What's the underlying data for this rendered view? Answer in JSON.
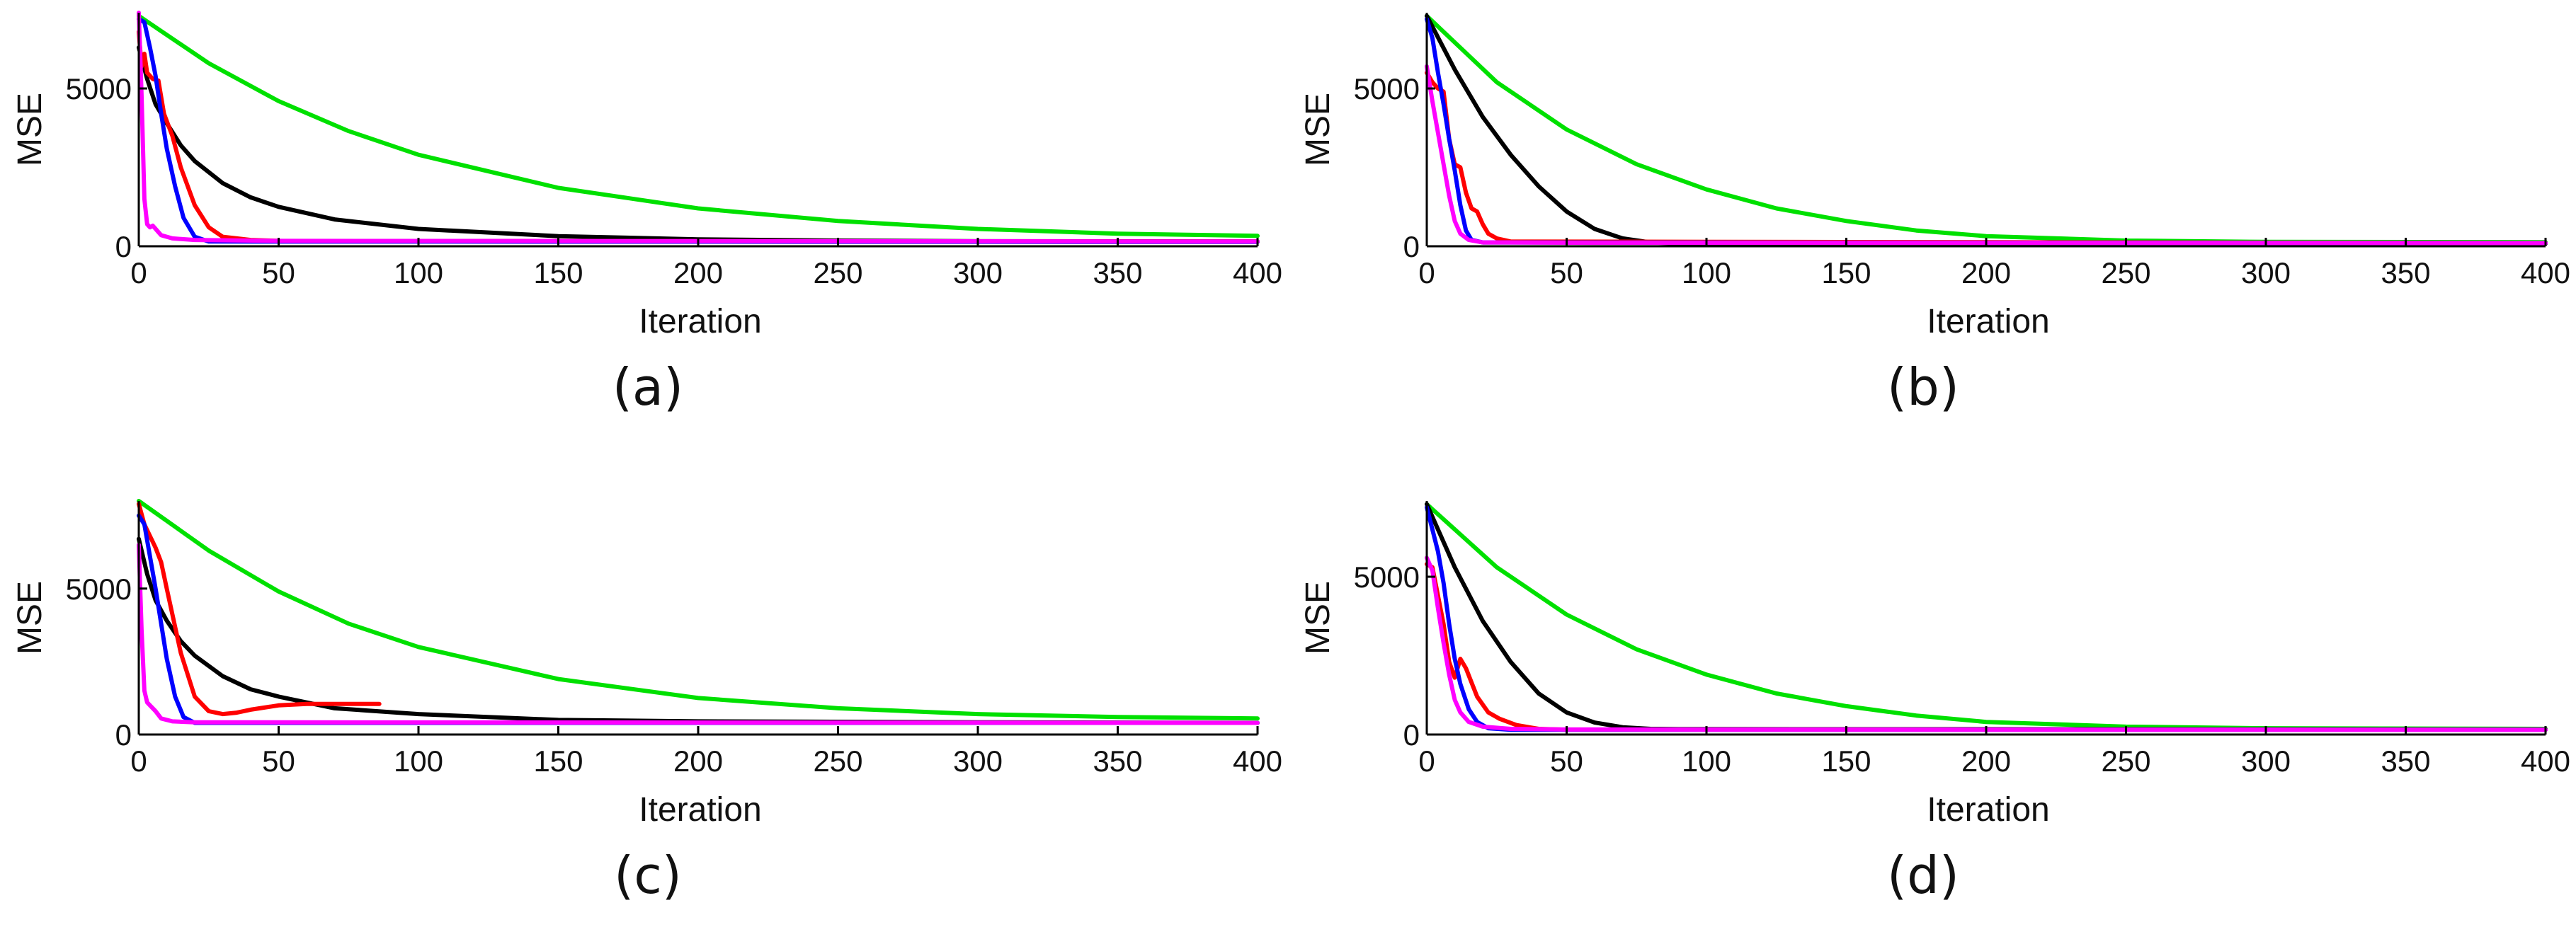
{
  "chart_data": [
    {
      "type": "line",
      "caption": "(a)",
      "xlabel": "Iteration",
      "ylabel": "MSE",
      "xlim": [
        0,
        400
      ],
      "ylim": [
        0,
        7400
      ],
      "xticks": [
        0,
        50,
        100,
        150,
        200,
        250,
        300,
        350,
        400
      ],
      "yticks": [
        0,
        5000
      ],
      "grid": false,
      "series": [
        {
          "color": "#00e000",
          "x": [
            0,
            25,
            50,
            75,
            100,
            150,
            200,
            250,
            300,
            350,
            400
          ],
          "y": [
            7300,
            5800,
            4600,
            3650,
            2900,
            1850,
            1200,
            800,
            550,
            400,
            330
          ]
        },
        {
          "color": "#000000",
          "x": [
            0,
            3,
            6,
            10,
            15,
            20,
            30,
            40,
            50,
            70,
            100,
            150,
            200,
            250,
            300,
            400
          ],
          "y": [
            6300,
            5300,
            4500,
            3900,
            3200,
            2700,
            2000,
            1550,
            1250,
            850,
            550,
            320,
            220,
            180,
            160,
            150
          ]
        },
        {
          "color": "#ff0000",
          "x": [
            0,
            1,
            2,
            3,
            5,
            7,
            9,
            12,
            15,
            20,
            25,
            30,
            40,
            50,
            400
          ],
          "y": [
            6800,
            5700,
            6100,
            5500,
            5300,
            5250,
            4200,
            3500,
            2500,
            1300,
            600,
            300,
            200,
            170,
            150
          ]
        },
        {
          "color": "#0000ff",
          "x": [
            0,
            2,
            4,
            6,
            8,
            10,
            13,
            16,
            20,
            25,
            400
          ],
          "y": [
            7200,
            7100,
            6300,
            5400,
            4200,
            3100,
            1900,
            900,
            300,
            150,
            140
          ]
        },
        {
          "color": "#ff00ff",
          "x": [
            0,
            1,
            2,
            3,
            4,
            5,
            8,
            12,
            20,
            50,
            400
          ],
          "y": [
            7400,
            4800,
            1500,
            700,
            600,
            650,
            350,
            250,
            200,
            170,
            150
          ]
        }
      ]
    },
    {
      "type": "line",
      "caption": "(b)",
      "xlabel": "Iteration",
      "ylabel": "MSE",
      "xlim": [
        0,
        400
      ],
      "ylim": [
        0,
        7400
      ],
      "xticks": [
        0,
        50,
        100,
        150,
        200,
        250,
        300,
        350,
        400
      ],
      "yticks": [
        0,
        5000
      ],
      "grid": false,
      "series": [
        {
          "color": "#00e000",
          "x": [
            0,
            25,
            50,
            75,
            100,
            125,
            150,
            175,
            200,
            250,
            300,
            400
          ],
          "y": [
            7300,
            5200,
            3700,
            2600,
            1800,
            1200,
            800,
            500,
            320,
            180,
            140,
            130
          ]
        },
        {
          "color": "#000000",
          "x": [
            0,
            10,
            20,
            30,
            40,
            50,
            60,
            70,
            80,
            90,
            100,
            400
          ],
          "y": [
            7300,
            5600,
            4100,
            2900,
            1900,
            1100,
            550,
            250,
            120,
            90,
            80,
            80
          ]
        },
        {
          "color": "#ff0000",
          "x": [
            0,
            2,
            4,
            6,
            8,
            10,
            12,
            14,
            16,
            18,
            20,
            22,
            25,
            30,
            400
          ],
          "y": [
            5500,
            5200,
            5000,
            4900,
            3400,
            2600,
            2500,
            1700,
            1200,
            1100,
            700,
            400,
            250,
            150,
            100
          ]
        },
        {
          "color": "#0000ff",
          "x": [
            0,
            2,
            4,
            6,
            8,
            10,
            12,
            14,
            16,
            20,
            400
          ],
          "y": [
            7200,
            6600,
            5500,
            4500,
            3400,
            2400,
            1300,
            500,
            200,
            120,
            100
          ]
        },
        {
          "color": "#ff00ff",
          "x": [
            0,
            2,
            4,
            6,
            8,
            10,
            12,
            15,
            20,
            30,
            60,
            400
          ],
          "y": [
            5700,
            4600,
            3600,
            2600,
            1600,
            800,
            400,
            200,
            120,
            120,
            110,
            100
          ]
        }
      ]
    },
    {
      "type": "line",
      "caption": "(c)",
      "xlabel": "Iteration",
      "ylabel": "MSE",
      "xlim": [
        0,
        400
      ],
      "ylim": [
        0,
        8000
      ],
      "xticks": [
        0,
        50,
        100,
        150,
        200,
        250,
        300,
        350,
        400
      ],
      "yticks": [
        0,
        5000
      ],
      "grid": false,
      "series": [
        {
          "color": "#00e000",
          "x": [
            0,
            25,
            50,
            75,
            100,
            150,
            200,
            250,
            300,
            350,
            400
          ],
          "y": [
            8000,
            6300,
            4900,
            3800,
            3000,
            1900,
            1250,
            900,
            700,
            600,
            550
          ]
        },
        {
          "color": "#000000",
          "x": [
            0,
            3,
            6,
            10,
            15,
            20,
            30,
            40,
            50,
            70,
            100,
            150,
            200,
            300,
            400
          ],
          "y": [
            6700,
            5500,
            4600,
            3900,
            3200,
            2700,
            2000,
            1550,
            1300,
            900,
            700,
            500,
            450,
            420,
            400
          ]
        },
        {
          "color": "#ff0000",
          "x": [
            0,
            2,
            4,
            6,
            8,
            10,
            15,
            20,
            25,
            30,
            35,
            40,
            50,
            60,
            86
          ],
          "y": [
            7900,
            7200,
            6800,
            6400,
            5900,
            5000,
            2800,
            1300,
            800,
            700,
            750,
            850,
            1000,
            1050,
            1050
          ]
        },
        {
          "color": "#0000ff",
          "x": [
            0,
            2,
            4,
            6,
            8,
            10,
            13,
            16,
            20,
            400
          ],
          "y": [
            7500,
            7200,
            6100,
            5000,
            3800,
            2600,
            1300,
            600,
            400,
            400
          ]
        },
        {
          "color": "#ff00ff",
          "x": [
            0,
            1,
            2,
            3,
            4,
            6,
            8,
            12,
            20,
            400
          ],
          "y": [
            6500,
            3600,
            1500,
            1100,
            1000,
            800,
            550,
            450,
            420,
            400
          ]
        }
      ]
    },
    {
      "type": "line",
      "caption": "(d)",
      "xlabel": "Iteration",
      "ylabel": "MSE",
      "xlim": [
        0,
        400
      ],
      "ylim": [
        0,
        7400
      ],
      "xticks": [
        0,
        50,
        100,
        150,
        200,
        250,
        300,
        350,
        400
      ],
      "yticks": [
        0,
        5000
      ],
      "grid": false,
      "series": [
        {
          "color": "#00e000",
          "x": [
            0,
            25,
            50,
            75,
            100,
            125,
            150,
            175,
            200,
            250,
            300,
            400
          ],
          "y": [
            7300,
            5300,
            3800,
            2700,
            1900,
            1300,
            900,
            600,
            400,
            250,
            200,
            180
          ]
        },
        {
          "color": "#000000",
          "x": [
            0,
            10,
            20,
            30,
            40,
            50,
            60,
            70,
            80,
            90,
            100,
            400
          ],
          "y": [
            7300,
            5300,
            3600,
            2300,
            1300,
            700,
            380,
            230,
            180,
            170,
            170,
            160
          ]
        },
        {
          "color": "#ff0000",
          "x": [
            0,
            2,
            4,
            6,
            8,
            10,
            12,
            14,
            18,
            22,
            26,
            32,
            40,
            50,
            400
          ],
          "y": [
            5400,
            5300,
            4400,
            3500,
            2300,
            1800,
            2400,
            2100,
            1200,
            700,
            500,
            300,
            180,
            150,
            150
          ]
        },
        {
          "color": "#0000ff",
          "x": [
            0,
            2,
            4,
            6,
            8,
            10,
            12,
            15,
            18,
            22,
            30,
            400
          ],
          "y": [
            7200,
            6500,
            5800,
            4800,
            3500,
            2400,
            1600,
            800,
            400,
            200,
            150,
            150
          ]
        },
        {
          "color": "#ff00ff",
          "x": [
            0,
            2,
            4,
            6,
            8,
            10,
            12,
            15,
            20,
            30,
            50,
            400
          ],
          "y": [
            5600,
            5200,
            4000,
            2900,
            1900,
            1100,
            700,
            400,
            250,
            180,
            160,
            150
          ]
        }
      ]
    }
  ]
}
